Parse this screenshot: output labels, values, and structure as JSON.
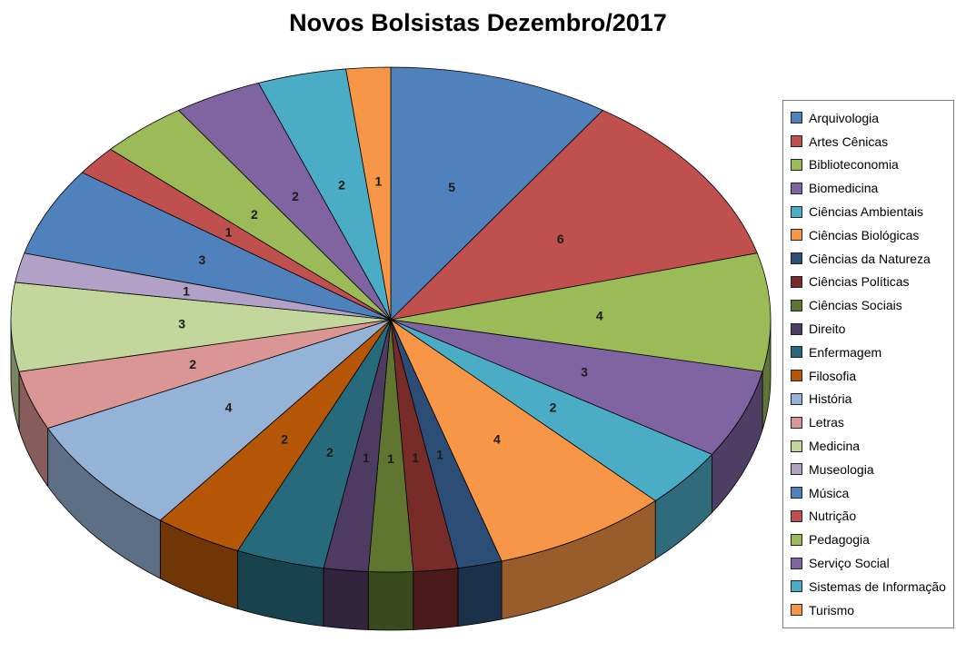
{
  "chart_data": {
    "type": "pie",
    "style": "3d",
    "title": "Novos Bolsistas Dezembro/2017",
    "legend_position": "right",
    "data_labels": "value",
    "categories": [
      "Arquivologia",
      "Artes Cênicas",
      "Biblioteconomia",
      "Biomedicina",
      "Ciências Ambientais",
      "Ciências Biológicas",
      "Ciências da Natureza",
      "Ciências Políticas",
      "Ciências Sociais",
      "Direito",
      "Enfermagem",
      "Filosofia",
      "História",
      "Letras",
      "Medicina",
      "Museologia",
      "Música",
      "Nutrição",
      "Pedagogia",
      "Serviço Social",
      "Sistemas de Informação",
      "Turismo"
    ],
    "values": [
      5,
      6,
      4,
      3,
      2,
      4,
      1,
      1,
      1,
      1,
      2,
      2,
      4,
      2,
      3,
      1,
      3,
      1,
      2,
      2,
      2,
      1
    ],
    "colors": [
      "#4F81BD",
      "#C0504D",
      "#9BBB59",
      "#8064A2",
      "#4BACC6",
      "#F79646",
      "#2C4D75",
      "#772C2A",
      "#5F7530",
      "#4D3B62",
      "#276A7C",
      "#B65708",
      "#95B3D7",
      "#D99694",
      "#C3D69B",
      "#B2A1C7",
      "#4F81BD",
      "#C0504D",
      "#9BBB59",
      "#8064A2",
      "#4BACC6",
      "#F79646"
    ]
  }
}
